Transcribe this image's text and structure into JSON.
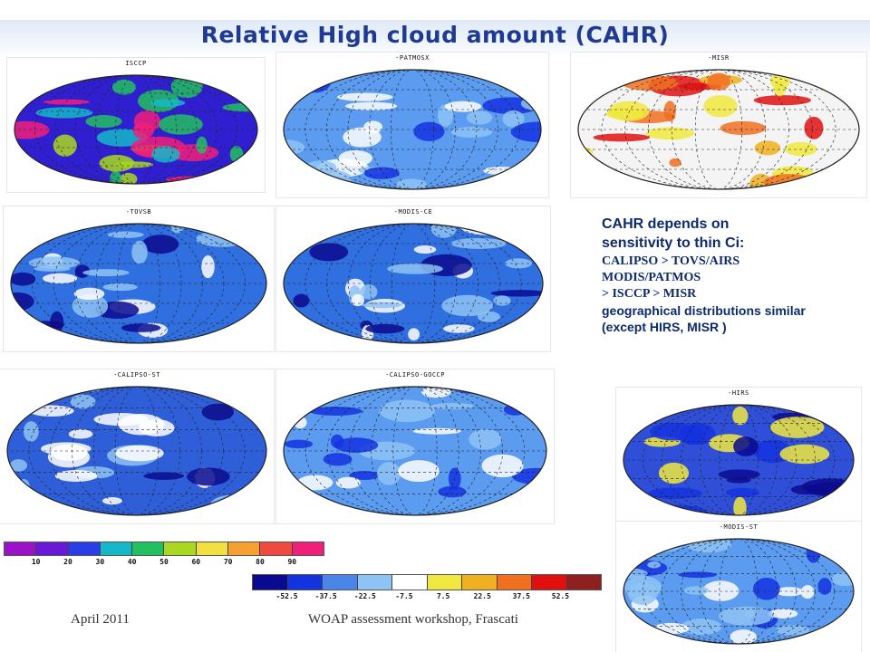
{
  "title": "Relative High cloud amount (CAHR)",
  "panels": [
    {
      "key": "isccp",
      "label": "ISCCP",
      "base": "#2f1fd0"
    },
    {
      "key": "patmosx",
      "label": "-PATMOSX",
      "base": "#5b9bf0"
    },
    {
      "key": "misr",
      "label": "-MISR",
      "base": "#f4f4f4"
    },
    {
      "key": "tovsb",
      "label": "-TOVSB",
      "base": "#2f6fe0"
    },
    {
      "key": "modisce",
      "label": "-MODIS-CE",
      "base": "#2f6fe0"
    },
    {
      "key": "calipsost",
      "label": "-CALIPSO-ST",
      "base": "#2f5fd8"
    },
    {
      "key": "calipsogoccp",
      "label": "-CALIPSO-GOCCP",
      "base": "#5b9bf0"
    },
    {
      "key": "hirs",
      "label": "-HIRS",
      "base": "#2f4fd8"
    },
    {
      "key": "modisst",
      "label": "-MODIS-ST",
      "base": "#5b9bf0"
    }
  ],
  "note": {
    "line1": "CAHR depends on",
    "line2": "sensitivity to thin Ci:",
    "line3": "CALIPSO > TOVS/AIRS",
    "line4": "MODIS/PATMOS",
    "line5": "> ISCCP > MISR",
    "line6": "geographical distributions similar",
    "line7": "(except HIRS, MISR )"
  },
  "colorbar1": {
    "colors": [
      "#9a13c8",
      "#6a18d8",
      "#2a3ee8",
      "#14b8c8",
      "#22c060",
      "#a8d820",
      "#f0e040",
      "#f5a030",
      "#f04a40",
      "#f0207a"
    ],
    "ticks": [
      "10",
      "20",
      "30",
      "40",
      "50",
      "60",
      "70",
      "80",
      "90"
    ]
  },
  "colorbar2": {
    "colors": [
      "#0a0a90",
      "#1433e0",
      "#4a86e8",
      "#8ec3f5",
      "#ffffff",
      "#f0e840",
      "#f0b020",
      "#f07020",
      "#e01010",
      "#902020"
    ],
    "ticks": [
      "-52.5",
      "-37.5",
      "-22.5",
      "-7.5",
      "7.5",
      "22.5",
      "37.5",
      "52.5"
    ]
  },
  "footer": {
    "left": "April 2011",
    "center": "WOAP assessment workshop, Frascati"
  }
}
